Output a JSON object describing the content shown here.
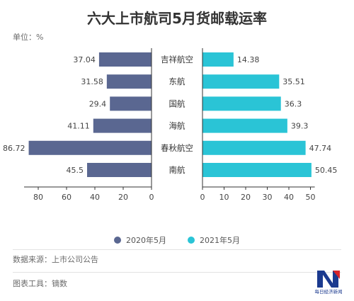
{
  "header": {
    "title": "六大上市航司5月货邮载运率",
    "unit": "单位：%"
  },
  "footer": {
    "source": "数据来源：上市公司公告",
    "tool": "图表工具：镝数"
  },
  "colors": {
    "series_2020": "#5a6791",
    "series_2021": "#2ac4d6",
    "axis": "#333333"
  },
  "logo": {
    "text": "每日经济新闻",
    "icon": "nbd-logo-icon"
  },
  "chart_data": {
    "type": "bar",
    "orientation": "horizontal-butterfly",
    "categories": [
      "吉祥航空",
      "东航",
      "国航",
      "海航",
      "春秋航空",
      "南航"
    ],
    "series": [
      {
        "name": "2020年5月",
        "values": [
          37.04,
          31.58,
          29.4,
          41.11,
          86.72,
          45.5
        ],
        "value_labels": [
          "37.04",
          "31.58",
          "29.4",
          "41.11",
          "86.72",
          "45.5"
        ]
      },
      {
        "name": "2021年5月",
        "values": [
          14.38,
          35.51,
          36.3,
          39.3,
          47.74,
          50.45
        ],
        "value_labels": [
          "14.38",
          "35.51",
          "36.3",
          "39.3",
          "47.74",
          "50.45"
        ]
      }
    ],
    "left_axis": {
      "range": [
        0,
        90
      ],
      "ticks": [
        0,
        20,
        40,
        60,
        80
      ],
      "reversed": true
    },
    "right_axis": {
      "range": [
        0,
        52
      ],
      "ticks": [
        0,
        10,
        20,
        30,
        40,
        50
      ]
    },
    "legend_position": "bottom",
    "grid": false
  }
}
